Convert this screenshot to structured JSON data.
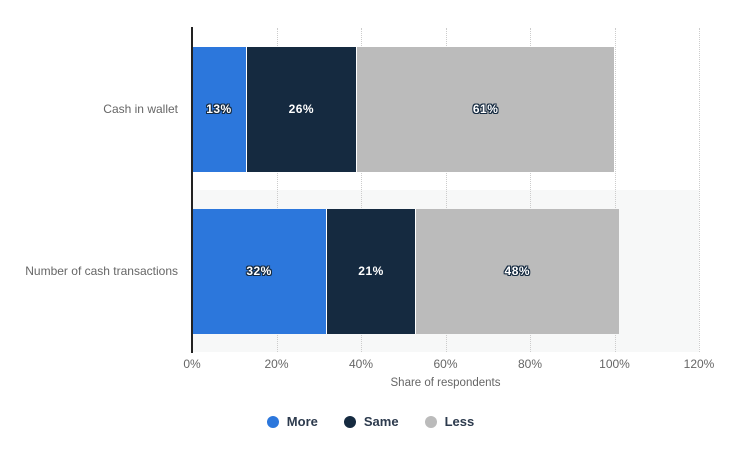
{
  "chart_data": {
    "type": "bar",
    "variant": "horizontal-stacked",
    "title": "",
    "categories": [
      "Cash in wallet",
      "Number of cash transactions"
    ],
    "series": [
      {
        "name": "More",
        "color": "#2c77dc",
        "values": [
          13,
          32
        ]
      },
      {
        "name": "Same",
        "color": "#152a40",
        "values": [
          26,
          21
        ]
      },
      {
        "name": "Less",
        "color": "#bbbbbb",
        "values": [
          61,
          48
        ]
      }
    ],
    "data_labels": [
      [
        "13%",
        "26%",
        "61%"
      ],
      [
        "32%",
        "21%",
        "48%"
      ]
    ],
    "value_suffix": "%",
    "xlabel": "Share of respondents",
    "x_ticks": [
      "0%",
      "20%",
      "40%",
      "60%",
      "80%",
      "100%",
      "120%"
    ],
    "x_tick_values": [
      0,
      20,
      40,
      60,
      80,
      100,
      120
    ],
    "xlim": [
      0,
      120
    ],
    "grid": "vertical-dotted",
    "legend_position": "bottom",
    "legend": [
      "More",
      "Same",
      "Less"
    ]
  },
  "style": {
    "background": "#ffffff",
    "plot_band_color": "#f7f8f8",
    "grid_color": "#cccccc",
    "axis_line_color": "#222222",
    "label_color": "#666666",
    "legend_text_color": "#2c3a4d",
    "data_label_color": "#ffffff",
    "data_label_outline": "#152a40"
  }
}
